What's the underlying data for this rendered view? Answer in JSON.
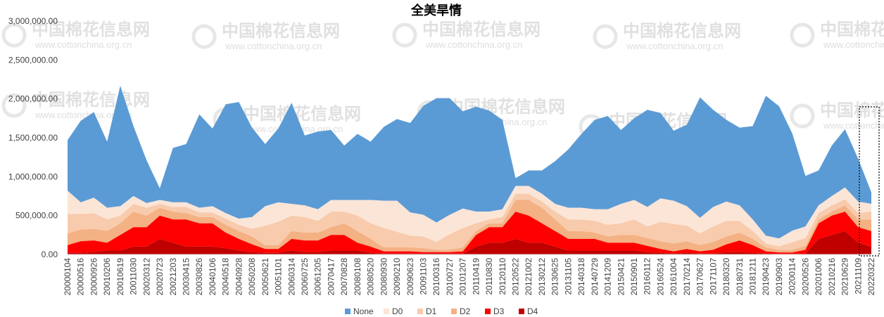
{
  "chart_data": {
    "type": "area",
    "stacked": true,
    "title": "全美旱情",
    "xlabel": "",
    "ylabel": "",
    "ylim": [
      0,
      3000000
    ],
    "y_ticks": [
      "0.00",
      "500,000.00",
      "1,000,000.00",
      "1,500,000.00",
      "2,000,000.00",
      "2,500,000.00",
      "3,000,000.00"
    ],
    "x_tick_labels": [
      "20000104",
      "20000516",
      "20000926",
      "20010206",
      "20010619",
      "20011030",
      "20020312",
      "20020723",
      "20021203",
      "20030415",
      "20030826",
      "20040106",
      "20040518",
      "20040928",
      "20050208",
      "20050621",
      "20051101",
      "20060314",
      "20060725",
      "20061205",
      "20070417",
      "20070828",
      "20080108",
      "20080520",
      "20080930",
      "20090210",
      "20090623",
      "20091103",
      "20100316",
      "20100727",
      "20101207",
      "20110419",
      "20110830",
      "20120110",
      "20120522",
      "20121002",
      "20130212",
      "20130625",
      "20131105",
      "20140318",
      "20140729",
      "20141209",
      "20150421",
      "20150901",
      "20160112",
      "20160524",
      "20161004",
      "20170214",
      "20170627",
      "20171107",
      "20180320",
      "20180731",
      "20181211",
      "20190423",
      "20190903",
      "20200114",
      "20200526",
      "20201006",
      "20210216",
      "20210629",
      "20211109",
      "20220322"
    ],
    "legend_position": "bottom",
    "grid": false,
    "series": [
      {
        "name": "None",
        "color": "#5b9bd5",
        "values": [
          650000,
          1050000,
          1100000,
          850000,
          1550000,
          900000,
          550000,
          150000,
          700000,
          750000,
          1200000,
          1000000,
          1400000,
          1500000,
          1150000,
          800000,
          950000,
          1300000,
          900000,
          1000000,
          900000,
          700000,
          850000,
          750000,
          950000,
          1050000,
          1150000,
          1400000,
          1600000,
          1500000,
          1250000,
          1350000,
          1300000,
          1150000,
          100000,
          200000,
          300000,
          550000,
          750000,
          950000,
          1150000,
          1200000,
          950000,
          1050000,
          1250000,
          1100000,
          900000,
          1050000,
          1550000,
          1250000,
          1050000,
          1000000,
          1200000,
          1800000,
          1700000,
          1250000,
          650000,
          450000,
          650000,
          750000,
          550000,
          150000
        ]
      },
      {
        "name": "D0",
        "color": "#fbe5d6",
        "values": [
          300000,
          150000,
          200000,
          150000,
          120000,
          100000,
          60000,
          50000,
          60000,
          60000,
          60000,
          80000,
          70000,
          80000,
          150000,
          250000,
          250000,
          150000,
          150000,
          150000,
          150000,
          150000,
          200000,
          300000,
          350000,
          400000,
          300000,
          280000,
          250000,
          250000,
          250000,
          150000,
          100000,
          100000,
          100000,
          100000,
          100000,
          100000,
          150000,
          150000,
          150000,
          200000,
          250000,
          250000,
          250000,
          300000,
          300000,
          250000,
          200000,
          250000,
          250000,
          200000,
          150000,
          100000,
          100000,
          150000,
          150000,
          100000,
          120000,
          150000,
          150000,
          100000
        ]
      },
      {
        "name": "D1",
        "color": "#f8cbad",
        "values": [
          250000,
          200000,
          200000,
          150000,
          100000,
          100000,
          100000,
          50000,
          60000,
          80000,
          60000,
          60000,
          80000,
          80000,
          100000,
          250000,
          300000,
          200000,
          200000,
          150000,
          200000,
          150000,
          200000,
          200000,
          250000,
          200000,
          150000,
          150000,
          100000,
          200000,
          250000,
          100000,
          50000,
          80000,
          80000,
          80000,
          80000,
          100000,
          150000,
          150000,
          150000,
          150000,
          150000,
          200000,
          150000,
          250000,
          250000,
          200000,
          150000,
          200000,
          200000,
          150000,
          100000,
          50000,
          50000,
          100000,
          100000,
          80000,
          80000,
          80000,
          80000,
          100000
        ]
      },
      {
        "name": "D2",
        "color": "#f4b183",
        "values": [
          150000,
          150000,
          150000,
          150000,
          150000,
          200000,
          150000,
          100000,
          100000,
          80000,
          80000,
          80000,
          100000,
          100000,
          100000,
          50000,
          50000,
          100000,
          100000,
          100000,
          100000,
          150000,
          150000,
          100000,
          50000,
          50000,
          50000,
          50000,
          30000,
          30000,
          50000,
          50000,
          50000,
          50000,
          150000,
          200000,
          200000,
          150000,
          100000,
          100000,
          80000,
          80000,
          100000,
          100000,
          100000,
          100000,
          100000,
          100000,
          80000,
          100000,
          100000,
          100000,
          80000,
          50000,
          30000,
          30000,
          50000,
          50000,
          50000,
          80000,
          100000,
          150000
        ]
      },
      {
        "name": "D3",
        "color": "#ff0000",
        "values": [
          100000,
          150000,
          150000,
          100000,
          200000,
          250000,
          250000,
          300000,
          300000,
          350000,
          300000,
          300000,
          200000,
          150000,
          100000,
          50000,
          50000,
          150000,
          150000,
          150000,
          200000,
          200000,
          100000,
          80000,
          30000,
          30000,
          30000,
          20000,
          20000,
          20000,
          30000,
          150000,
          200000,
          200000,
          350000,
          350000,
          250000,
          200000,
          150000,
          150000,
          150000,
          100000,
          100000,
          100000,
          80000,
          50000,
          30000,
          50000,
          30000,
          50000,
          100000,
          150000,
          100000,
          30000,
          20000,
          20000,
          50000,
          200000,
          250000,
          250000,
          200000,
          200000
        ]
      },
      {
        "name": "D4",
        "color": "#c00000",
        "values": [
          20000,
          20000,
          30000,
          50000,
          50000,
          100000,
          100000,
          200000,
          150000,
          100000,
          100000,
          100000,
          80000,
          50000,
          30000,
          20000,
          20000,
          50000,
          30000,
          30000,
          50000,
          50000,
          50000,
          20000,
          10000,
          10000,
          10000,
          10000,
          10000,
          10000,
          10000,
          100000,
          150000,
          150000,
          200000,
          150000,
          150000,
          100000,
          50000,
          50000,
          50000,
          50000,
          50000,
          50000,
          30000,
          20000,
          10000,
          20000,
          10000,
          10000,
          30000,
          30000,
          20000,
          10000,
          5000,
          5000,
          10000,
          200000,
          250000,
          300000,
          150000,
          100000
        ]
      }
    ]
  }
}
